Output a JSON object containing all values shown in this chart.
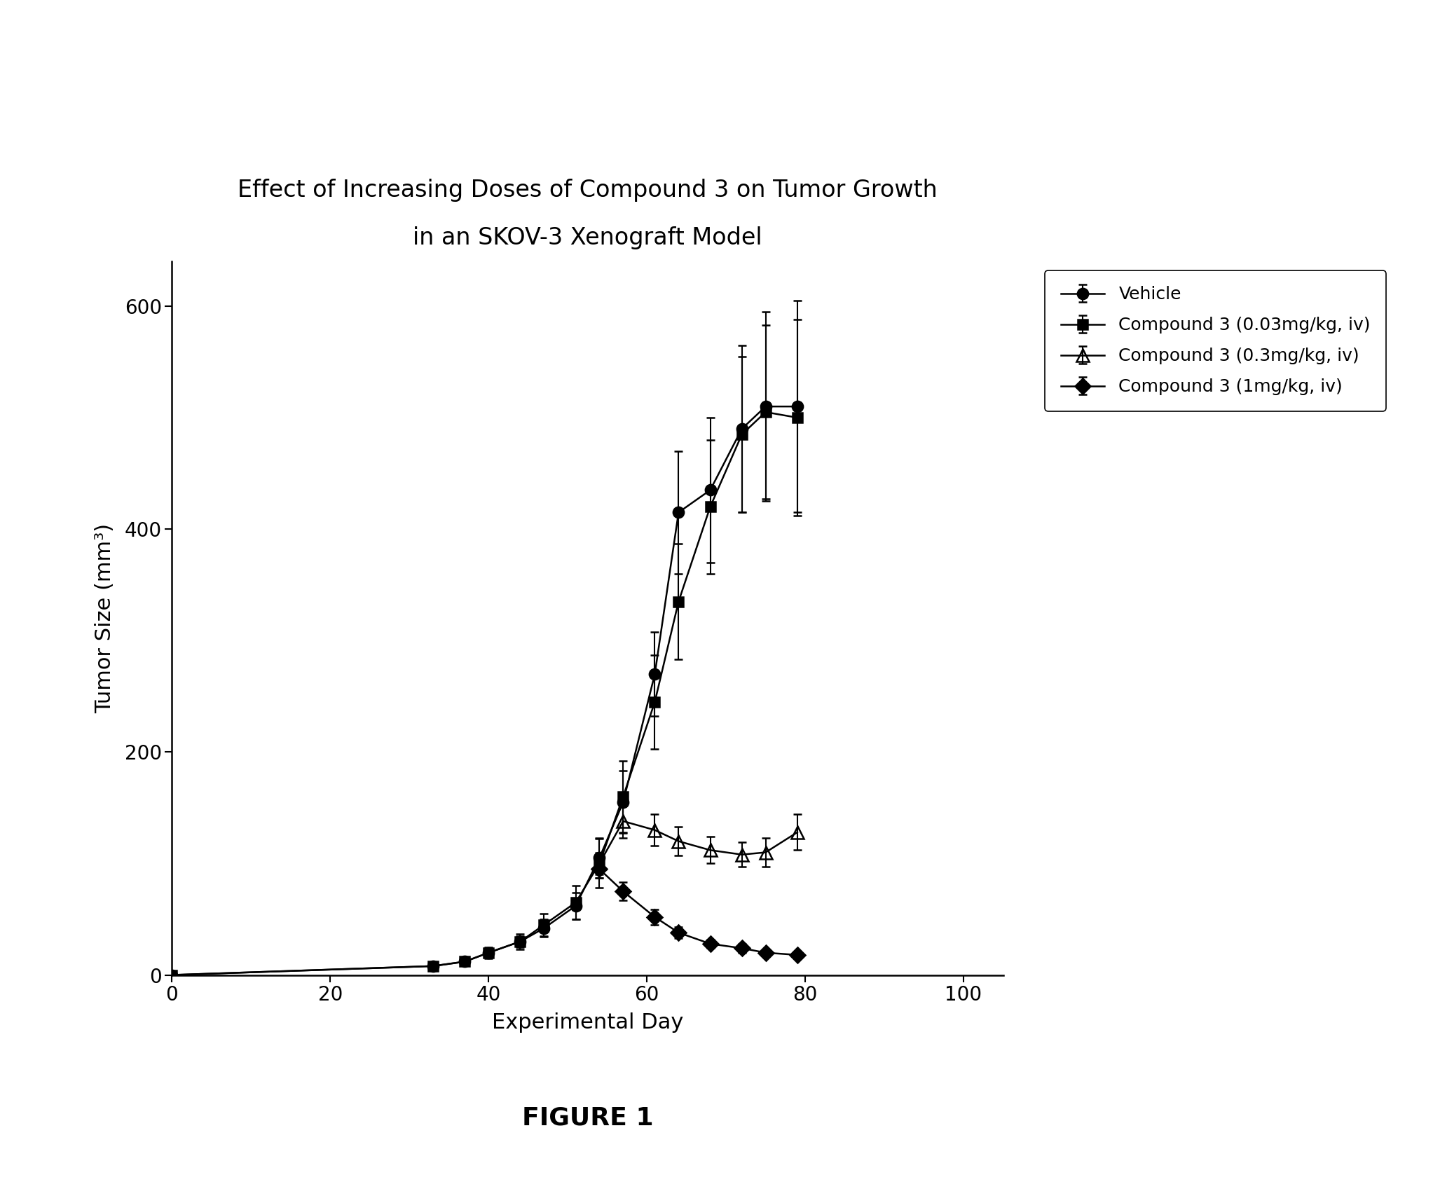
{
  "title_line1": "Effect of Increasing Doses of Compound 3 on Tumor Growth",
  "title_line2": "in an SKOV-3 Xenograft Model",
  "xlabel": "Experimental Day",
  "ylabel": "Tumor Size (mm³)",
  "figure_label": "FIGURE 1",
  "xlim": [
    0,
    105
  ],
  "ylim": [
    0,
    640
  ],
  "xticks": [
    0,
    20,
    40,
    60,
    80,
    100
  ],
  "yticks": [
    0,
    200,
    400,
    600
  ],
  "background_color": "#ffffff",
  "series": [
    {
      "label": "Vehicle",
      "marker": "o",
      "color": "#000000",
      "fillstyle": "full",
      "x": [
        0,
        33,
        37,
        40,
        44,
        47,
        51,
        54,
        57,
        61,
        64,
        68,
        72,
        75,
        79
      ],
      "y": [
        0,
        8,
        12,
        20,
        30,
        42,
        62,
        105,
        155,
        270,
        415,
        435,
        490,
        510,
        510
      ],
      "yerr": [
        0,
        2,
        3,
        4,
        5,
        8,
        12,
        18,
        28,
        38,
        55,
        65,
        75,
        85,
        95
      ]
    },
    {
      "label": "Compound 3 (0.03mg/kg, iv)",
      "marker": "s",
      "color": "#000000",
      "fillstyle": "full",
      "x": [
        0,
        33,
        37,
        40,
        44,
        47,
        51,
        54,
        57,
        61,
        64,
        68,
        72,
        75,
        79
      ],
      "y": [
        0,
        8,
        12,
        20,
        30,
        45,
        65,
        100,
        160,
        245,
        335,
        420,
        485,
        505,
        500
      ],
      "yerr": [
        0,
        2,
        3,
        5,
        7,
        10,
        15,
        22,
        32,
        42,
        52,
        60,
        70,
        78,
        88
      ]
    },
    {
      "label": "Compound 3 (0.3mg/kg, iv)",
      "marker": "^",
      "color": "#000000",
      "fillstyle": "none",
      "x": [
        54,
        57,
        61,
        64,
        68,
        72,
        75,
        79
      ],
      "y": [
        100,
        138,
        130,
        120,
        112,
        108,
        110,
        128
      ],
      "yerr": [
        10,
        15,
        14,
        13,
        12,
        11,
        13,
        16
      ]
    },
    {
      "label": "Compound 3 (1mg/kg, iv)",
      "marker": "D",
      "color": "#000000",
      "fillstyle": "full",
      "x": [
        54,
        57,
        61,
        64,
        68,
        72,
        75,
        79
      ],
      "y": [
        95,
        75,
        52,
        38,
        28,
        24,
        20,
        18
      ],
      "yerr": [
        8,
        8,
        7,
        5,
        4,
        4,
        3,
        3
      ]
    }
  ]
}
